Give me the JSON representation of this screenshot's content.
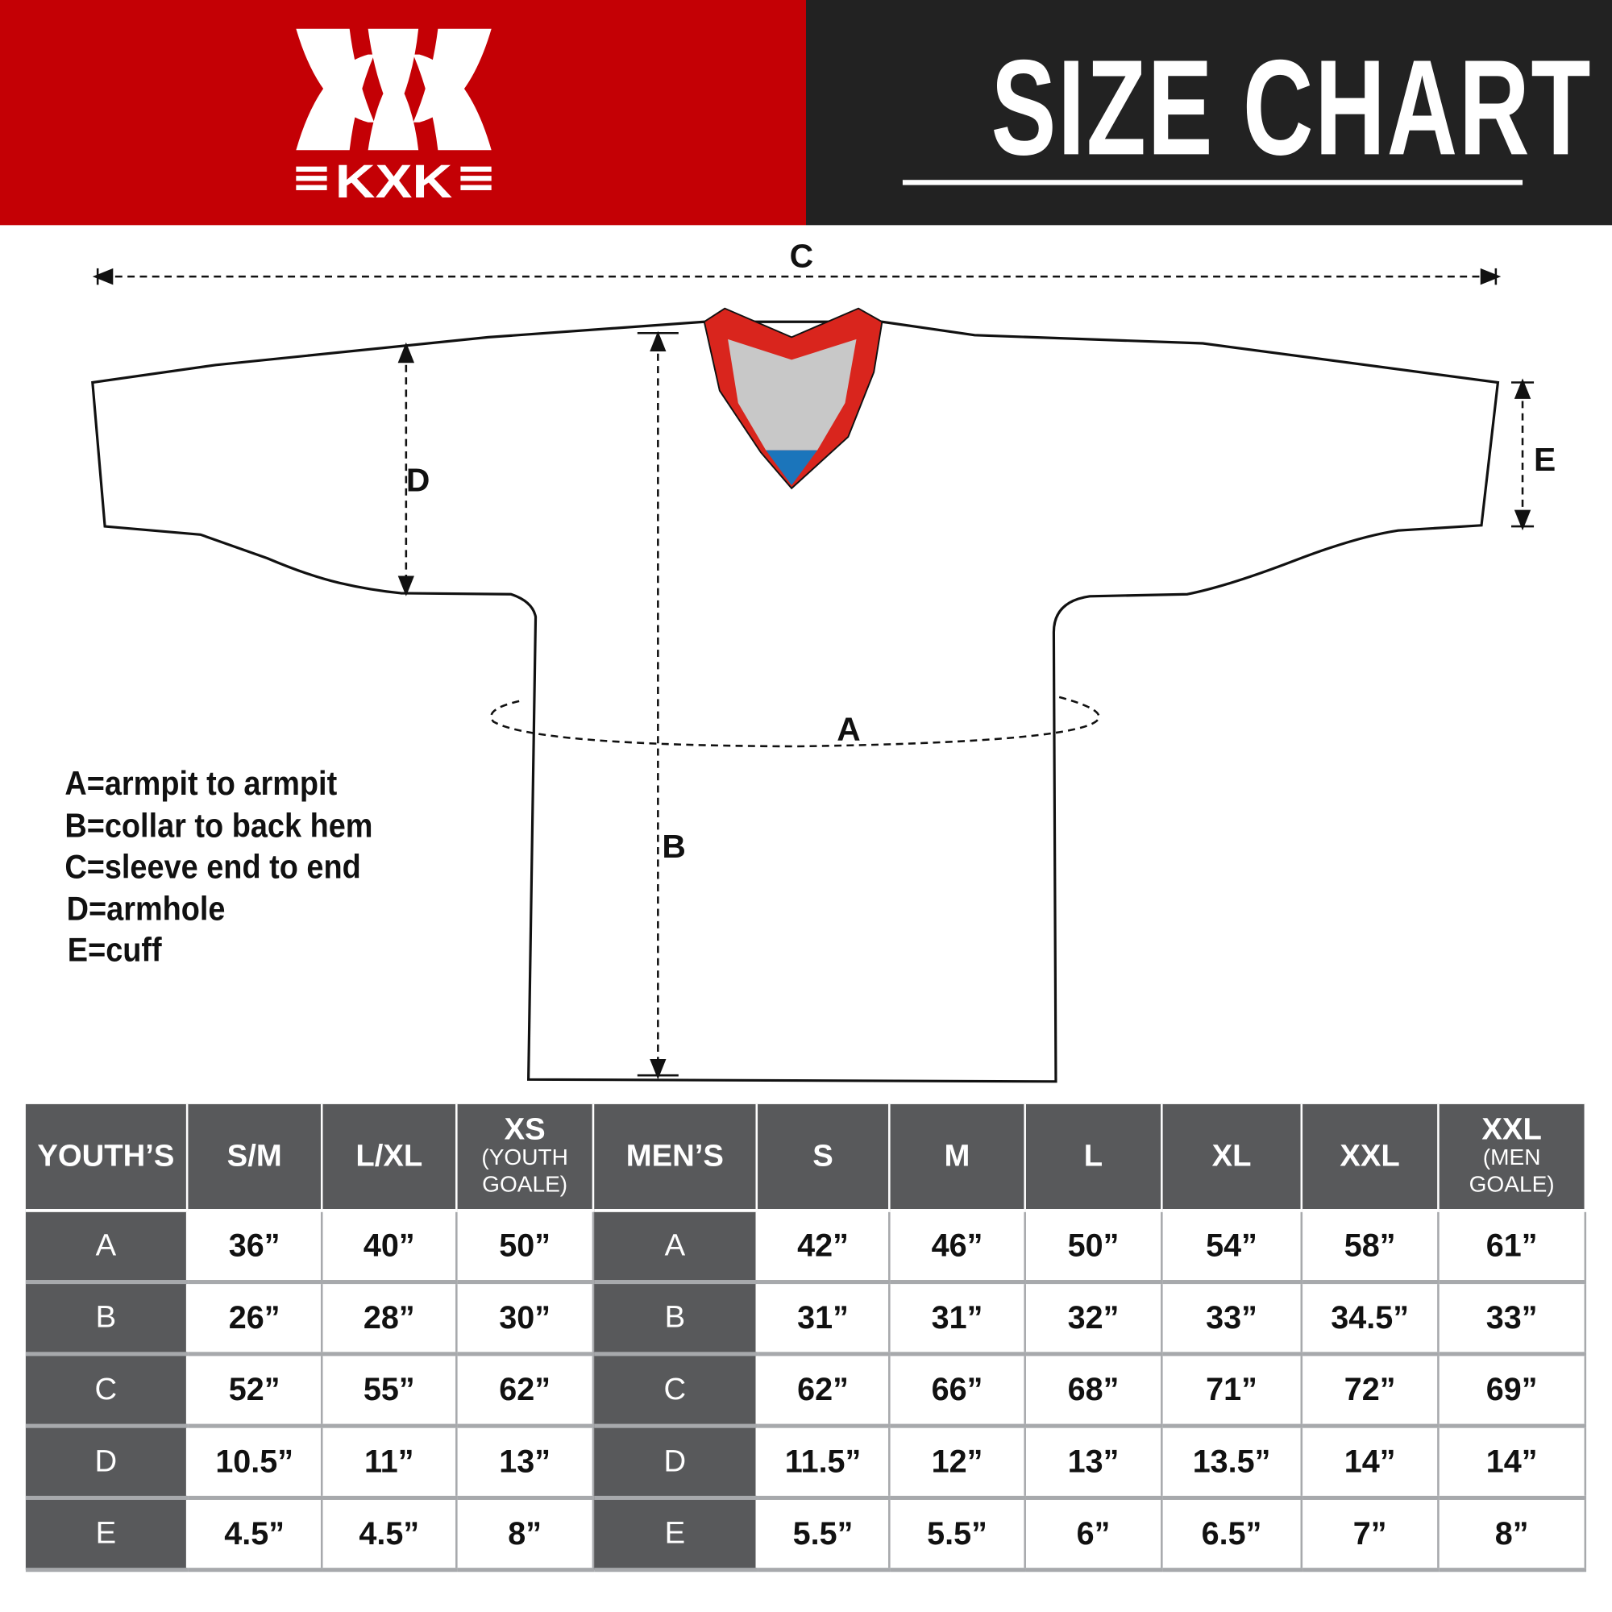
{
  "header": {
    "brand": "KXK",
    "title": "SIZE CHART",
    "colors": {
      "brand_red": "#c40005",
      "dark": "#222222",
      "table_header": "#58595b",
      "table_border": "#a7a9ac"
    }
  },
  "diagram": {
    "labels": {
      "a": "A",
      "b": "B",
      "c": "C",
      "d": "D",
      "e": "E"
    },
    "legend": [
      "A=armpit to armpit",
      "B=collar to back hem",
      "C=sleeve end to end",
      "D=armhole",
      "E=cuff"
    ],
    "colors": {
      "collar": "#d9251d",
      "collar_inner": "#c8c8c8",
      "collar_tip": "#1b75bb"
    }
  },
  "table": {
    "youth_header": "YOUTH’S",
    "men_header": "MEN’S",
    "youth_sizes": [
      {
        "main": "S/M",
        "sub": ""
      },
      {
        "main": "L/XL",
        "sub": ""
      },
      {
        "main": "XS",
        "sub": "(YOUTH GOALE)"
      }
    ],
    "men_sizes": [
      {
        "main": "S",
        "sub": ""
      },
      {
        "main": "M",
        "sub": ""
      },
      {
        "main": "L",
        "sub": ""
      },
      {
        "main": "XL",
        "sub": ""
      },
      {
        "main": "XXL",
        "sub": ""
      },
      {
        "main": "XXL",
        "sub": "(MEN GOALE)"
      }
    ],
    "rows": [
      {
        "label": "A",
        "youth": [
          "36”",
          "40”",
          "50”"
        ],
        "men": [
          "42”",
          "46”",
          "50”",
          "54”",
          "58”",
          "61”"
        ]
      },
      {
        "label": "B",
        "youth": [
          "26”",
          "28”",
          "30”"
        ],
        "men": [
          "31”",
          "31”",
          "32”",
          "33”",
          "34.5”",
          "33”"
        ]
      },
      {
        "label": "C",
        "youth": [
          "52”",
          "55”",
          "62”"
        ],
        "men": [
          "62”",
          "66”",
          "68”",
          "71”",
          "72”",
          "69”"
        ]
      },
      {
        "label": "D",
        "youth": [
          "10.5”",
          "11”",
          "13”"
        ],
        "men": [
          "11.5”",
          "12”",
          "13”",
          "13.5”",
          "14”",
          "14”"
        ]
      },
      {
        "label": "E",
        "youth": [
          "4.5”",
          "4.5”",
          "8”"
        ],
        "men": [
          "5.5”",
          "5.5”",
          "6”",
          "6.5”",
          "7”",
          "8”"
        ]
      }
    ]
  }
}
